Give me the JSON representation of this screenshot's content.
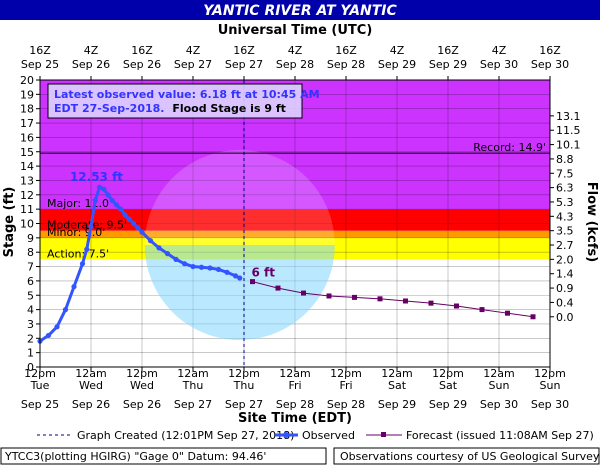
{
  "chart_data": {
    "type": "line",
    "title": "YANTIC RIVER AT YANTIC",
    "top_axis_title": "Universal Time (UTC)",
    "top_tick_labels": [
      [
        "16Z",
        "Sep 25"
      ],
      [
        "4Z",
        "Sep 26"
      ],
      [
        "16Z",
        "Sep 26"
      ],
      [
        "4Z",
        "Sep 27"
      ],
      [
        "16Z",
        "Sep 27"
      ],
      [
        "4Z",
        "Sep 28"
      ],
      [
        "16Z",
        "Sep 28"
      ],
      [
        "4Z",
        "Sep 29"
      ],
      [
        "16Z",
        "Sep 29"
      ],
      [
        "4Z",
        "Sep 30"
      ],
      [
        "16Z",
        "Sep 30"
      ]
    ],
    "xlabel": "Site Time (EDT)",
    "x_tick_labels": [
      [
        "12pm",
        "Tue",
        "Sep 25"
      ],
      [
        "12am",
        "Wed",
        "Sep 26"
      ],
      [
        "12pm",
        "Wed",
        "Sep 26"
      ],
      [
        "12am",
        "Thu",
        "Sep 27"
      ],
      [
        "12pm",
        "Thu",
        "Sep 27"
      ],
      [
        "12am",
        "Fri",
        "Sep 28"
      ],
      [
        "12pm",
        "Fri",
        "Sep 28"
      ],
      [
        "12am",
        "Sat",
        "Sep 29"
      ],
      [
        "12pm",
        "Sat",
        "Sep 29"
      ],
      [
        "12am",
        "Sun",
        "Sep 30"
      ],
      [
        "12pm",
        "Sun",
        "Sep 30"
      ]
    ],
    "xlim_hours": [
      0,
      120
    ],
    "ylabel": "Stage (ft)",
    "ylim": [
      0,
      20
    ],
    "y_ticks": [
      0,
      1,
      2,
      3,
      4,
      5,
      6,
      7,
      8,
      9,
      10,
      11,
      12,
      13,
      14,
      15,
      16,
      17,
      18,
      19,
      20
    ],
    "y2label": "Flow (kcfs)",
    "y2_ticks": [
      {
        "stage": 3.5,
        "label": "0.0"
      },
      {
        "stage": 4.5,
        "label": "0.4"
      },
      {
        "stage": 5.5,
        "label": "0.9"
      },
      {
        "stage": 6.5,
        "label": "1.4"
      },
      {
        "stage": 7.5,
        "label": "2.0"
      },
      {
        "stage": 8.5,
        "label": "2.7"
      },
      {
        "stage": 9.5,
        "label": "3.5"
      },
      {
        "stage": 10.5,
        "label": "4.3"
      },
      {
        "stage": 11.5,
        "label": "5.3"
      },
      {
        "stage": 12.5,
        "label": "6.3"
      },
      {
        "stage": 13.5,
        "label": "7.5"
      },
      {
        "stage": 14.5,
        "label": "8.8"
      },
      {
        "stage": 15.5,
        "label": "10.1"
      },
      {
        "stage": 16.5,
        "label": "11.5"
      },
      {
        "stage": 17.5,
        "label": "13.1"
      }
    ],
    "grid": true,
    "flood_categories": [
      {
        "label": "Action: 7.5'",
        "from": 7.5,
        "to": 9,
        "color": "#ffff00"
      },
      {
        "label": "Minor: 9.0'",
        "from": 9,
        "to": 9.5,
        "color": "#ff9900"
      },
      {
        "label": "Moderate: 9.5'",
        "from": 9.5,
        "to": 11,
        "color": "#ff0000"
      },
      {
        "label": "Major: 11.0'",
        "from": 11,
        "to": 20,
        "color": "#cc33ff"
      }
    ],
    "record": {
      "label": "Record: 14.9'",
      "value": 14.9
    },
    "crest_label": "12.53 ft",
    "crest": {
      "x": 14,
      "y": 12.53
    },
    "current_label": "6 ft",
    "graph_created_x": 48,
    "observed": {
      "name": "Observed",
      "color": "#3355ff",
      "x": [
        0,
        2,
        4,
        6,
        8,
        10,
        11,
        12,
        13,
        14,
        15,
        16,
        17,
        18,
        19,
        20,
        21,
        22,
        23,
        24,
        26,
        28,
        30,
        32,
        34,
        36,
        38,
        40,
        42,
        44,
        46,
        47
      ],
      "y": [
        1.8,
        2.2,
        2.8,
        4.0,
        5.6,
        7.2,
        8.2,
        9.8,
        11.6,
        12.53,
        12.4,
        12.0,
        11.6,
        11.3,
        11.0,
        10.6,
        10.3,
        10.0,
        9.7,
        9.4,
        8.8,
        8.3,
        7.9,
        7.5,
        7.2,
        7.0,
        6.95,
        6.9,
        6.8,
        6.6,
        6.35,
        6.2
      ]
    },
    "forecast": {
      "name": "Forecast (issued 11:08AM Sep 27)",
      "color": "#660066",
      "x": [
        50,
        56,
        62,
        68,
        74,
        80,
        86,
        92,
        98,
        104,
        110,
        116
      ],
      "y": [
        5.95,
        5.5,
        5.15,
        4.95,
        4.85,
        4.75,
        4.6,
        4.45,
        4.25,
        4.0,
        3.75,
        3.5
      ]
    },
    "legend": {
      "graph_created": "Graph Created (12:01PM Sep 27, 2018)",
      "observed": "Observed",
      "forecast": "Forecast (issued 11:08AM Sep 27)"
    },
    "info_box": {
      "line1": "Latest observed value: 6.18 ft at 10:45 AM",
      "line2a": "EDT 27-Sep-2018.",
      "line2b": "Flood Stage is 9 ft"
    },
    "footer_left": "YTCC3(plotting HGIRG) \"Gage 0\" Datum: 94.46'",
    "footer_right": "Observations courtesy of US Geological Survey",
    "colors": {
      "title_bar": "#0000aa",
      "title_text": "#ffffff",
      "plot_background": "#ffffff"
    }
  }
}
